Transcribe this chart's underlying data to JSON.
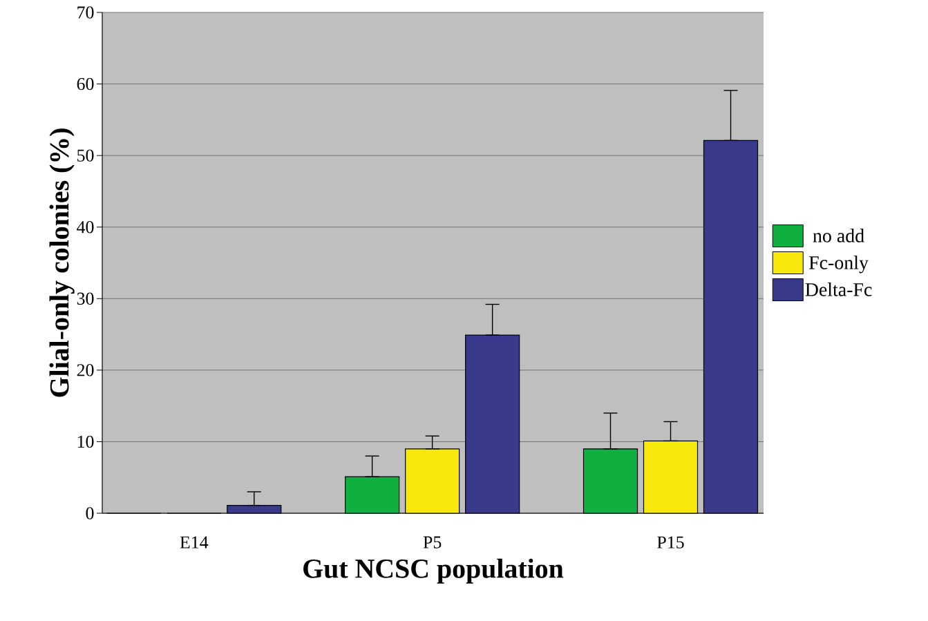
{
  "chart_data": {
    "type": "bar",
    "xlabel": "Gut  NCSC  population",
    "ylabel": "Glial-only colonies (%)",
    "categories": [
      "E14",
      "P5",
      "P15"
    ],
    "series": [
      {
        "name": "no add",
        "color": "#10b040",
        "values": [
          0,
          5.1,
          9.0
        ],
        "errors": [
          null,
          [
            5.1,
            8.0
          ],
          [
            9.0,
            14.0
          ]
        ]
      },
      {
        "name": "Fc-only",
        "color": "#f5e80a",
        "values": [
          0,
          9.0,
          10.1
        ],
        "errors": [
          null,
          [
            9.0,
            10.8
          ],
          [
            10.1,
            12.8
          ]
        ]
      },
      {
        "name": "Delta-Fc",
        "color": "#3a3a8c",
        "values": [
          1.1,
          24.9,
          52.1
        ],
        "errors": [
          [
            1.1,
            3.0
          ],
          [
            24.9,
            29.2
          ],
          [
            52.1,
            59.1
          ]
        ]
      }
    ],
    "ylim": [
      0,
      70
    ],
    "yticks": [
      0,
      10,
      20,
      30,
      40,
      50,
      60,
      70
    ],
    "grid": "y",
    "legend": "right"
  }
}
